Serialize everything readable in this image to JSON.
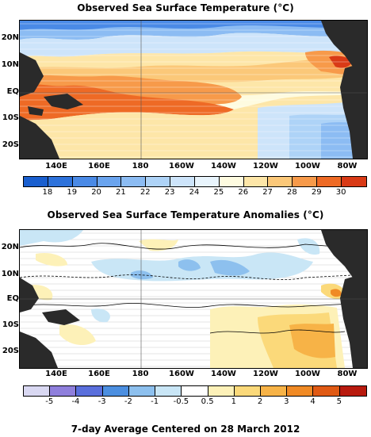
{
  "sst_panel": {
    "title": "Observed Sea Surface Temperature (°C)",
    "lat_labels": [
      "20N",
      "10N",
      "EQ",
      "10S",
      "20S"
    ],
    "lon_labels": [
      "140E",
      "160E",
      "180",
      "160W",
      "140W",
      "120W",
      "100W",
      "80W"
    ],
    "colorbar": {
      "labels": [
        "18",
        "19",
        "20",
        "21",
        "22",
        "23",
        "24",
        "25",
        "26",
        "27",
        "28",
        "29",
        "30"
      ],
      "colors": [
        "#1a5fcf",
        "#2d72db",
        "#4a8ae6",
        "#6aa4ee",
        "#8cbcf3",
        "#aed3f7",
        "#cde4fa",
        "#e8f4fc",
        "#fefbe0",
        "#fde6a8",
        "#fbc879",
        "#f79a4a",
        "#ee6a25",
        "#d93a16"
      ]
    }
  },
  "anomaly_panel": {
    "title": "Observed Sea Surface Temperature Anomalies (°C)",
    "lat_labels": [
      "20N",
      "10N",
      "EQ",
      "10S",
      "20S"
    ],
    "lon_labels": [
      "140E",
      "160E",
      "180",
      "160W",
      "140W",
      "120W",
      "100W",
      "80W"
    ],
    "colorbar": {
      "labels": [
        "-5",
        "-4",
        "-3",
        "-2",
        "-1",
        "-0.5",
        "0.5",
        "1",
        "2",
        "3",
        "4",
        "5"
      ],
      "colors": [
        "#d9d8f2",
        "#8f7fdc",
        "#5a6fdc",
        "#4c8fe0",
        "#8dc0ee",
        "#c9e6f6",
        "#ffffff",
        "#fdf1b8",
        "#fbd97a",
        "#f7b347",
        "#f08a25",
        "#e05a14",
        "#b81a0e"
      ]
    }
  },
  "footer": "7-day Average Centered on 28 March 2012"
}
